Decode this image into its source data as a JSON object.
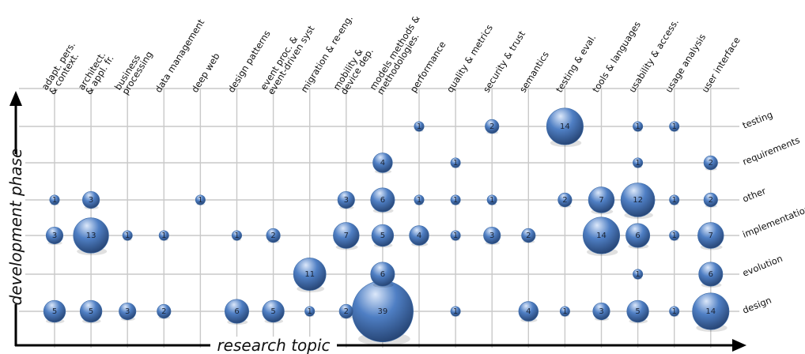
{
  "chart_data": {
    "type": "scatter",
    "title": "",
    "xlabel": "research topic",
    "ylabel": "development phase",
    "grid": true,
    "x_categories": [
      "adapt. pers. & context.",
      "architect. & appl. fr.",
      "business processing",
      "data management",
      "deep web",
      "design patterns",
      "event proc. & event-driven syst",
      "migration & re-eng.",
      "mobility & device dep.",
      "models methods & methodologies.",
      "performance",
      "quality & metrics",
      "security & trust",
      "semantics",
      "testing & eval.",
      "tools & languages",
      "usability & access.",
      "usage analysis",
      "user interface"
    ],
    "x_tick_lines": [
      [
        "adapt. pers.",
        "& context."
      ],
      [
        "architect.",
        "& appl. fr."
      ],
      [
        "business",
        "processing"
      ],
      [
        "data management"
      ],
      [
        "deep web"
      ],
      [
        "design patterns"
      ],
      [
        "event proc. &",
        "event-driven syst"
      ],
      [
        "migration & re-eng."
      ],
      [
        "mobility &",
        "device dep."
      ],
      [
        "models methods &",
        "methodologies."
      ],
      [
        "performance"
      ],
      [
        "quality & metrics"
      ],
      [
        "security & trust"
      ],
      [
        "semantics"
      ],
      [
        "testing & eval."
      ],
      [
        "tools & languages"
      ],
      [
        "usability & access."
      ],
      [
        "usage analysis"
      ],
      [
        "user interface"
      ]
    ],
    "y_categories": [
      "testing",
      "requirements",
      "other",
      "implementation",
      "evolution",
      "design"
    ],
    "points": [
      {
        "x": "performance",
        "y": "testing",
        "value": 1
      },
      {
        "x": "security & trust",
        "y": "testing",
        "value": 2
      },
      {
        "x": "testing & eval.",
        "y": "testing",
        "value": 14
      },
      {
        "x": "usability & access.",
        "y": "testing",
        "value": 1
      },
      {
        "x": "usage analysis",
        "y": "testing",
        "value": 1
      },
      {
        "x": "models methods & methodologies.",
        "y": "requirements",
        "value": 4
      },
      {
        "x": "quality & metrics",
        "y": "requirements",
        "value": 1
      },
      {
        "x": "usability & access.",
        "y": "requirements",
        "value": 1
      },
      {
        "x": "user interface",
        "y": "requirements",
        "value": 2
      },
      {
        "x": "adapt. pers. & context.",
        "y": "other",
        "value": 1
      },
      {
        "x": "architect. & appl. fr.",
        "y": "other",
        "value": 3
      },
      {
        "x": "deep web",
        "y": "other",
        "value": 1
      },
      {
        "x": "mobility & device dep.",
        "y": "other",
        "value": 3
      },
      {
        "x": "models methods & methodologies.",
        "y": "other",
        "value": 6
      },
      {
        "x": "performance",
        "y": "other",
        "value": 1
      },
      {
        "x": "quality & metrics",
        "y": "other",
        "value": 1
      },
      {
        "x": "security & trust",
        "y": "other",
        "value": 1
      },
      {
        "x": "testing & eval.",
        "y": "other",
        "value": 2
      },
      {
        "x": "tools & languages",
        "y": "other",
        "value": 7
      },
      {
        "x": "usability & access.",
        "y": "other",
        "value": 12
      },
      {
        "x": "usage analysis",
        "y": "other",
        "value": 1
      },
      {
        "x": "user interface",
        "y": "other",
        "value": 2
      },
      {
        "x": "adapt. pers. & context.",
        "y": "implementation",
        "value": 3
      },
      {
        "x": "architect. & appl. fr.",
        "y": "implementation",
        "value": 13
      },
      {
        "x": "business processing",
        "y": "implementation",
        "value": 1
      },
      {
        "x": "data management",
        "y": "implementation",
        "value": 1
      },
      {
        "x": "design patterns",
        "y": "implementation",
        "value": 1
      },
      {
        "x": "event proc. & event-driven syst",
        "y": "implementation",
        "value": 2
      },
      {
        "x": "mobility & device dep.",
        "y": "implementation",
        "value": 7
      },
      {
        "x": "models methods & methodologies.",
        "y": "implementation",
        "value": 5
      },
      {
        "x": "performance",
        "y": "implementation",
        "value": 4
      },
      {
        "x": "quality & metrics",
        "y": "implementation",
        "value": 1
      },
      {
        "x": "security & trust",
        "y": "implementation",
        "value": 3
      },
      {
        "x": "semantics",
        "y": "implementation",
        "value": 2
      },
      {
        "x": "tools & languages",
        "y": "implementation",
        "value": 14
      },
      {
        "x": "usability & access.",
        "y": "implementation",
        "value": 6
      },
      {
        "x": "usage analysis",
        "y": "implementation",
        "value": 1
      },
      {
        "x": "user interface",
        "y": "implementation",
        "value": 7
      },
      {
        "x": "migration & re-eng.",
        "y": "evolution",
        "value": 11
      },
      {
        "x": "models methods & methodologies.",
        "y": "evolution",
        "value": 6
      },
      {
        "x": "usability & access.",
        "y": "evolution",
        "value": 1
      },
      {
        "x": "user interface",
        "y": "evolution",
        "value": 6
      },
      {
        "x": "adapt. pers. & context.",
        "y": "design",
        "value": 5
      },
      {
        "x": "architect. & appl. fr.",
        "y": "design",
        "value": 5
      },
      {
        "x": "business processing",
        "y": "design",
        "value": 3
      },
      {
        "x": "data management",
        "y": "design",
        "value": 2
      },
      {
        "x": "design patterns",
        "y": "design",
        "value": 6
      },
      {
        "x": "event proc. & event-driven syst",
        "y": "design",
        "value": 5
      },
      {
        "x": "migration & re-eng.",
        "y": "design",
        "value": 1
      },
      {
        "x": "mobility & device dep.",
        "y": "design",
        "value": 2
      },
      {
        "x": "models methods & methodologies.",
        "y": "design",
        "value": 39
      },
      {
        "x": "quality & metrics",
        "y": "design",
        "value": 1
      },
      {
        "x": "semantics",
        "y": "design",
        "value": 4
      },
      {
        "x": "testing & eval.",
        "y": "design",
        "value": 1
      },
      {
        "x": "tools & languages",
        "y": "design",
        "value": 3
      },
      {
        "x": "usability & access.",
        "y": "design",
        "value": 5
      },
      {
        "x": "usage analysis",
        "y": "design",
        "value": 1
      },
      {
        "x": "user interface",
        "y": "design",
        "value": 14
      }
    ],
    "bubble_color": "#4f7fc4",
    "bubble_highlight": "#dce8fa",
    "bubble_shadow": "#23406e",
    "grid_color": "#c9c9c9",
    "axis_color": "#000000"
  }
}
